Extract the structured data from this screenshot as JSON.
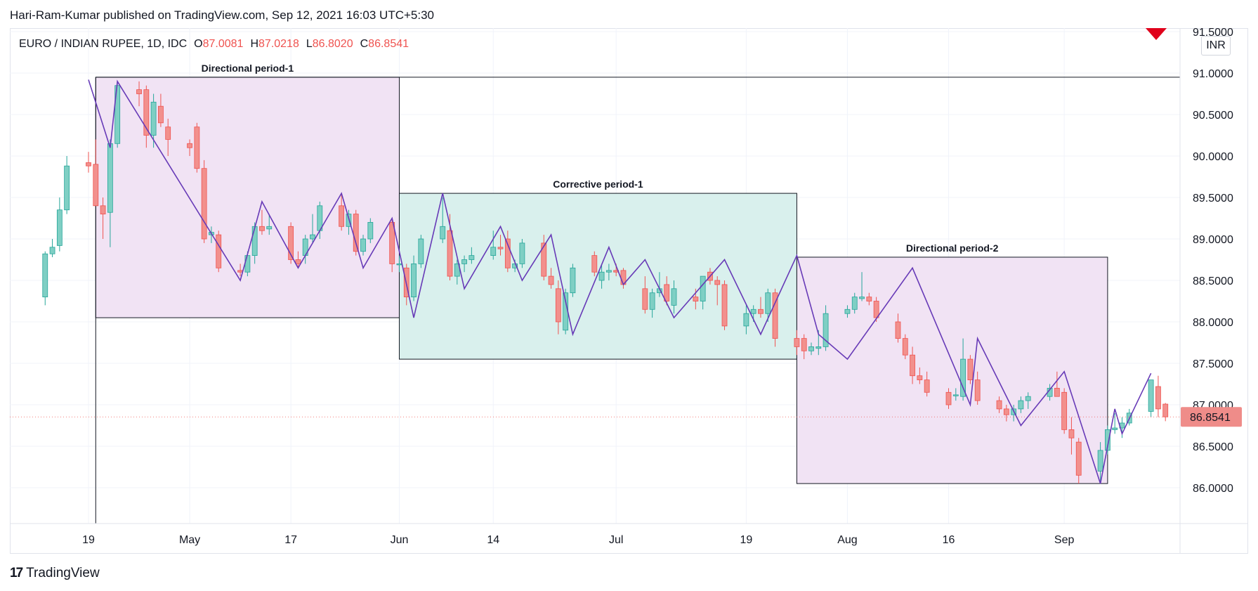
{
  "header": {
    "published_line": "Hari-Ram-Kumar published on TradingView.com, Sep 12, 2021 16:03 UTC+5:30"
  },
  "legend": {
    "symbol": "EURO / INDIAN RUPEE, 1D, IDC",
    "open_key": "O",
    "open_val": "87.0081",
    "high_key": "H",
    "high_val": "87.0218",
    "low_key": "L",
    "low_val": "86.8020",
    "close_key": "C",
    "close_val": "86.8541"
  },
  "currency_badge": "INR",
  "brand": {
    "logo": "17",
    "name": "TradingView"
  },
  "colors": {
    "up": "#26a69a",
    "up_fill": "#7fcfc4",
    "down": "#ef5350",
    "down_fill": "#f2908d",
    "zigzag": "#673ab7",
    "directional_fill": "#f1e3f4",
    "corrective_fill": "#d9f0ed",
    "price_tag": "#ef8c89",
    "alert": "#e0001b"
  },
  "chart_data": {
    "type": "candlestick",
    "title": "EURO / INDIAN RUPEE, 1D, IDC",
    "ylabel": "INR",
    "ylim": [
      85.6,
      91.5
    ],
    "y_ticks": [
      "86.0000",
      "86.5000",
      "87.0000",
      "87.5000",
      "88.0000",
      "88.5000",
      "89.0000",
      "89.5000",
      "90.0000",
      "90.5000",
      "91.0000",
      "91.5000"
    ],
    "x_ticks": [
      {
        "date": "2021-04-19",
        "label": "19"
      },
      {
        "date": "2021-05-03",
        "label": "May"
      },
      {
        "date": "2021-05-17",
        "label": "17"
      },
      {
        "date": "2021-06-01",
        "label": "Jun"
      },
      {
        "date": "2021-06-14",
        "label": "14"
      },
      {
        "date": "2021-07-01",
        "label": "Jul"
      },
      {
        "date": "2021-07-19",
        "label": "19"
      },
      {
        "date": "2021-08-02",
        "label": "Aug"
      },
      {
        "date": "2021-08-16",
        "label": "16"
      },
      {
        "date": "2021-09-01",
        "label": "Sep"
      }
    ],
    "last_price": "86.8541",
    "candles": [
      {
        "d": "2021-04-13",
        "o": 88.3,
        "h": 88.85,
        "l": 88.2,
        "c": 88.82
      },
      {
        "d": "2021-04-14",
        "o": 88.82,
        "h": 89.0,
        "l": 88.78,
        "c": 88.9
      },
      {
        "d": "2021-04-15",
        "o": 88.92,
        "h": 89.5,
        "l": 88.85,
        "c": 89.35
      },
      {
        "d": "2021-04-16",
        "o": 89.35,
        "h": 90.0,
        "l": 89.3,
        "c": 89.88
      },
      {
        "d": "2021-04-19",
        "o": 89.92,
        "h": 90.05,
        "l": 89.8,
        "c": 89.88
      },
      {
        "d": "2021-04-20",
        "o": 89.9,
        "h": 90.2,
        "l": 89.4,
        "c": 89.4
      },
      {
        "d": "2021-04-21",
        "o": 89.4,
        "h": 89.5,
        "l": 89.0,
        "c": 89.3
      },
      {
        "d": "2021-04-22",
        "o": 89.32,
        "h": 90.2,
        "l": 88.9,
        "c": 90.15
      },
      {
        "d": "2021-04-23",
        "o": 90.15,
        "h": 90.9,
        "l": 90.1,
        "c": 90.85
      },
      {
        "d": "2021-04-26",
        "o": 90.8,
        "h": 90.9,
        "l": 90.6,
        "c": 90.75
      },
      {
        "d": "2021-04-27",
        "o": 90.8,
        "h": 90.85,
        "l": 90.1,
        "c": 90.25
      },
      {
        "d": "2021-04-28",
        "o": 90.25,
        "h": 90.75,
        "l": 90.1,
        "c": 90.65
      },
      {
        "d": "2021-04-29",
        "o": 90.6,
        "h": 90.75,
        "l": 90.35,
        "c": 90.4
      },
      {
        "d": "2021-04-30",
        "o": 90.35,
        "h": 90.45,
        "l": 90.0,
        "c": 90.2
      },
      {
        "d": "2021-05-03",
        "o": 90.15,
        "h": 90.2,
        "l": 90.0,
        "c": 90.1
      },
      {
        "d": "2021-05-04",
        "o": 90.35,
        "h": 90.4,
        "l": 89.8,
        "c": 89.85
      },
      {
        "d": "2021-05-05",
        "o": 89.85,
        "h": 89.95,
        "l": 88.95,
        "c": 89.0
      },
      {
        "d": "2021-05-06",
        "o": 89.05,
        "h": 89.15,
        "l": 88.95,
        "c": 89.08
      },
      {
        "d": "2021-05-07",
        "o": 89.05,
        "h": 89.1,
        "l": 88.6,
        "c": 88.65
      },
      {
        "d": "2021-05-10",
        "o": 88.62,
        "h": 88.7,
        "l": 88.55,
        "c": 88.6
      },
      {
        "d": "2021-05-11",
        "o": 88.6,
        "h": 88.85,
        "l": 88.55,
        "c": 88.8
      },
      {
        "d": "2021-05-12",
        "o": 88.8,
        "h": 89.2,
        "l": 88.7,
        "c": 89.15
      },
      {
        "d": "2021-05-13",
        "o": 89.15,
        "h": 89.35,
        "l": 89.05,
        "c": 89.1
      },
      {
        "d": "2021-05-14",
        "o": 89.12,
        "h": 89.3,
        "l": 89.05,
        "c": 89.15
      },
      {
        "d": "2021-05-17",
        "o": 89.15,
        "h": 89.2,
        "l": 88.7,
        "c": 88.75
      },
      {
        "d": "2021-05-18",
        "o": 88.75,
        "h": 88.85,
        "l": 88.65,
        "c": 88.7
      },
      {
        "d": "2021-05-19",
        "o": 88.8,
        "h": 89.05,
        "l": 88.7,
        "c": 89.0
      },
      {
        "d": "2021-05-20",
        "o": 89.0,
        "h": 89.3,
        "l": 88.95,
        "c": 89.05
      },
      {
        "d": "2021-05-21",
        "o": 89.1,
        "h": 89.45,
        "l": 89.0,
        "c": 89.4
      },
      {
        "d": "2021-05-24",
        "o": 89.4,
        "h": 89.55,
        "l": 89.1,
        "c": 89.15
      },
      {
        "d": "2021-05-25",
        "o": 89.15,
        "h": 89.35,
        "l": 89.05,
        "c": 89.3
      },
      {
        "d": "2021-05-26",
        "o": 89.3,
        "h": 89.35,
        "l": 88.8,
        "c": 88.85
      },
      {
        "d": "2021-05-27",
        "o": 88.85,
        "h": 89.05,
        "l": 88.8,
        "c": 89.0
      },
      {
        "d": "2021-05-28",
        "o": 89.0,
        "h": 89.25,
        "l": 88.95,
        "c": 89.2
      },
      {
        "d": "2021-05-31",
        "o": 89.2,
        "h": 89.25,
        "l": 88.6,
        "c": 88.7
      },
      {
        "d": "2021-06-01",
        "o": 88.7,
        "h": 88.8,
        "l": 88.6,
        "c": 88.7
      },
      {
        "d": "2021-06-02",
        "o": 88.65,
        "h": 88.7,
        "l": 88.2,
        "c": 88.3
      },
      {
        "d": "2021-06-03",
        "o": 88.3,
        "h": 88.8,
        "l": 88.25,
        "c": 88.7
      },
      {
        "d": "2021-06-04",
        "o": 88.7,
        "h": 89.05,
        "l": 88.65,
        "c": 89.0
      },
      {
        "d": "2021-06-07",
        "o": 89.0,
        "h": 89.5,
        "l": 88.95,
        "c": 89.15
      },
      {
        "d": "2021-06-08",
        "o": 89.1,
        "h": 89.3,
        "l": 88.5,
        "c": 88.55
      },
      {
        "d": "2021-06-09",
        "o": 88.55,
        "h": 88.75,
        "l": 88.45,
        "c": 88.7
      },
      {
        "d": "2021-06-10",
        "o": 88.7,
        "h": 88.8,
        "l": 88.6,
        "c": 88.75
      },
      {
        "d": "2021-06-11",
        "o": 88.75,
        "h": 88.9,
        "l": 88.7,
        "c": 88.8
      },
      {
        "d": "2021-06-14",
        "o": 88.8,
        "h": 89.1,
        "l": 88.75,
        "c": 88.9
      },
      {
        "d": "2021-06-15",
        "o": 88.9,
        "h": 89.05,
        "l": 88.8,
        "c": 88.88
      },
      {
        "d": "2021-06-16",
        "o": 89.0,
        "h": 89.1,
        "l": 88.6,
        "c": 88.65
      },
      {
        "d": "2021-06-17",
        "o": 88.65,
        "h": 88.75,
        "l": 88.6,
        "c": 88.7
      },
      {
        "d": "2021-06-18",
        "o": 88.7,
        "h": 89.0,
        "l": 88.65,
        "c": 88.95
      },
      {
        "d": "2021-06-21",
        "o": 88.95,
        "h": 89.05,
        "l": 88.5,
        "c": 88.55
      },
      {
        "d": "2021-06-22",
        "o": 88.55,
        "h": 88.65,
        "l": 88.4,
        "c": 88.45
      },
      {
        "d": "2021-06-23",
        "o": 88.4,
        "h": 88.5,
        "l": 87.85,
        "c": 88.0
      },
      {
        "d": "2021-06-24",
        "o": 87.9,
        "h": 88.4,
        "l": 87.85,
        "c": 88.35
      },
      {
        "d": "2021-06-25",
        "o": 88.35,
        "h": 88.7,
        "l": 88.3,
        "c": 88.65
      },
      {
        "d": "2021-06-28",
        "o": 88.8,
        "h": 88.85,
        "l": 88.55,
        "c": 88.6
      },
      {
        "d": "2021-06-29",
        "o": 88.5,
        "h": 88.7,
        "l": 88.4,
        "c": 88.6
      },
      {
        "d": "2021-06-30",
        "o": 88.6,
        "h": 88.7,
        "l": 88.5,
        "c": 88.62
      },
      {
        "d": "2021-07-01",
        "o": 88.62,
        "h": 88.7,
        "l": 88.55,
        "c": 88.6
      },
      {
        "d": "2021-07-02",
        "o": 88.62,
        "h": 88.65,
        "l": 88.4,
        "c": 88.45
      },
      {
        "d": "2021-07-05",
        "o": 88.4,
        "h": 88.55,
        "l": 88.1,
        "c": 88.15
      },
      {
        "d": "2021-07-06",
        "o": 88.15,
        "h": 88.4,
        "l": 88.05,
        "c": 88.35
      },
      {
        "d": "2021-07-07",
        "o": 88.35,
        "h": 88.6,
        "l": 88.3,
        "c": 88.4
      },
      {
        "d": "2021-07-08",
        "o": 88.45,
        "h": 88.55,
        "l": 88.2,
        "c": 88.25
      },
      {
        "d": "2021-07-09",
        "o": 88.2,
        "h": 88.5,
        "l": 88.1,
        "c": 88.4
      },
      {
        "d": "2021-07-12",
        "o": 88.3,
        "h": 88.4,
        "l": 88.15,
        "c": 88.25
      },
      {
        "d": "2021-07-13",
        "o": 88.25,
        "h": 88.55,
        "l": 88.15,
        "c": 88.55
      },
      {
        "d": "2021-07-14",
        "o": 88.6,
        "h": 88.65,
        "l": 88.45,
        "c": 88.5
      },
      {
        "d": "2021-07-15",
        "o": 88.5,
        "h": 88.55,
        "l": 88.2,
        "c": 88.45
      },
      {
        "d": "2021-07-16",
        "o": 88.45,
        "h": 88.5,
        "l": 87.9,
        "c": 87.95
      },
      {
        "d": "2021-07-19",
        "o": 87.95,
        "h": 88.2,
        "l": 87.85,
        "c": 88.1
      },
      {
        "d": "2021-07-20",
        "o": 88.1,
        "h": 88.2,
        "l": 88.0,
        "c": 88.15
      },
      {
        "d": "2021-07-21",
        "o": 88.15,
        "h": 88.3,
        "l": 88.05,
        "c": 88.1
      },
      {
        "d": "2021-07-22",
        "o": 88.1,
        "h": 88.4,
        "l": 88.0,
        "c": 88.35
      },
      {
        "d": "2021-07-23",
        "o": 88.35,
        "h": 88.4,
        "l": 87.7,
        "c": 87.8
      },
      {
        "d": "2021-07-26",
        "o": 87.8,
        "h": 87.9,
        "l": 87.6,
        "c": 87.7
      },
      {
        "d": "2021-07-27",
        "o": 87.8,
        "h": 87.85,
        "l": 87.55,
        "c": 87.65
      },
      {
        "d": "2021-07-28",
        "o": 87.65,
        "h": 87.75,
        "l": 87.6,
        "c": 87.7
      },
      {
        "d": "2021-07-29",
        "o": 87.68,
        "h": 87.9,
        "l": 87.6,
        "c": 87.7
      },
      {
        "d": "2021-07-30",
        "o": 87.7,
        "h": 88.2,
        "l": 87.65,
        "c": 88.1
      },
      {
        "d": "2021-08-02",
        "o": 88.1,
        "h": 88.2,
        "l": 88.05,
        "c": 88.15
      },
      {
        "d": "2021-08-03",
        "o": 88.15,
        "h": 88.35,
        "l": 88.1,
        "c": 88.3
      },
      {
        "d": "2021-08-04",
        "o": 88.28,
        "h": 88.6,
        "l": 88.25,
        "c": 88.3
      },
      {
        "d": "2021-08-05",
        "o": 88.3,
        "h": 88.35,
        "l": 88.2,
        "c": 88.25
      },
      {
        "d": "2021-08-06",
        "o": 88.25,
        "h": 88.3,
        "l": 88.0,
        "c": 88.05
      },
      {
        "d": "2021-08-09",
        "o": 88.0,
        "h": 88.1,
        "l": 87.75,
        "c": 87.8
      },
      {
        "d": "2021-08-10",
        "o": 87.8,
        "h": 87.85,
        "l": 87.55,
        "c": 87.6
      },
      {
        "d": "2021-08-11",
        "o": 87.6,
        "h": 87.7,
        "l": 87.25,
        "c": 87.35
      },
      {
        "d": "2021-08-12",
        "o": 87.35,
        "h": 87.45,
        "l": 87.25,
        "c": 87.3
      },
      {
        "d": "2021-08-13",
        "o": 87.3,
        "h": 87.4,
        "l": 87.1,
        "c": 87.15
      },
      {
        "d": "2021-08-16",
        "o": 87.15,
        "h": 87.2,
        "l": 86.95,
        "c": 87.0
      },
      {
        "d": "2021-08-17",
        "o": 87.12,
        "h": 87.2,
        "l": 87.05,
        "c": 87.12
      },
      {
        "d": "2021-08-18",
        "o": 87.1,
        "h": 87.8,
        "l": 87.05,
        "c": 87.55
      },
      {
        "d": "2021-08-19",
        "o": 87.55,
        "h": 87.6,
        "l": 87.25,
        "c": 87.3
      },
      {
        "d": "2021-08-20",
        "o": 87.3,
        "h": 87.4,
        "l": 87.0,
        "c": 87.05
      },
      {
        "d": "2021-08-23",
        "o": 87.05,
        "h": 87.1,
        "l": 86.9,
        "c": 86.95
      },
      {
        "d": "2021-08-24",
        "o": 86.95,
        "h": 87.0,
        "l": 86.8,
        "c": 86.88
      },
      {
        "d": "2021-08-25",
        "o": 86.88,
        "h": 87.0,
        "l": 86.8,
        "c": 86.95
      },
      {
        "d": "2021-08-26",
        "o": 86.95,
        "h": 87.1,
        "l": 86.9,
        "c": 87.05
      },
      {
        "d": "2021-08-27",
        "o": 87.05,
        "h": 87.15,
        "l": 86.95,
        "c": 87.1
      },
      {
        "d": "2021-08-30",
        "o": 87.1,
        "h": 87.25,
        "l": 87.05,
        "c": 87.2
      },
      {
        "d": "2021-08-31",
        "o": 87.2,
        "h": 87.4,
        "l": 87.1,
        "c": 87.1
      },
      {
        "d": "2021-09-01",
        "o": 87.15,
        "h": 87.2,
        "l": 86.65,
        "c": 86.7
      },
      {
        "d": "2021-09-02",
        "o": 86.7,
        "h": 86.85,
        "l": 86.4,
        "c": 86.6
      },
      {
        "d": "2021-09-03",
        "o": 86.55,
        "h": 86.6,
        "l": 86.05,
        "c": 86.15
      },
      {
        "d": "2021-09-06",
        "o": 86.2,
        "h": 86.55,
        "l": 86.05,
        "c": 86.45
      },
      {
        "d": "2021-09-07",
        "o": 86.45,
        "h": 86.75,
        "l": 86.4,
        "c": 86.7
      },
      {
        "d": "2021-09-08",
        "o": 86.7,
        "h": 86.9,
        "l": 86.65,
        "c": 86.72
      },
      {
        "d": "2021-09-09",
        "o": 86.72,
        "h": 86.85,
        "l": 86.6,
        "c": 86.78
      },
      {
        "d": "2021-09-10",
        "o": 86.78,
        "h": 86.95,
        "l": 86.75,
        "c": 86.9
      },
      {
        "d": "2021-09-13",
        "o": 86.92,
        "h": 87.3,
        "l": 86.85,
        "c": 87.3
      },
      {
        "d": "2021-09-14",
        "o": 87.22,
        "h": 87.35,
        "l": 86.85,
        "c": 86.95
      },
      {
        "d": "2021-09-15",
        "o": 87.0081,
        "h": 87.0218,
        "l": 86.802,
        "c": 86.8541
      }
    ],
    "zigzag": [
      {
        "d": "2021-04-19",
        "v": 90.92
      },
      {
        "d": "2021-04-22",
        "v": 90.1
      },
      {
        "d": "2021-04-23",
        "v": 90.9
      },
      {
        "d": "2021-05-10",
        "v": 88.5
      },
      {
        "d": "2021-05-13",
        "v": 89.45
      },
      {
        "d": "2021-05-18",
        "v": 88.65
      },
      {
        "d": "2021-05-24",
        "v": 89.55
      },
      {
        "d": "2021-05-27",
        "v": 88.65
      },
      {
        "d": "2021-05-31",
        "v": 89.25
      },
      {
        "d": "2021-06-03",
        "v": 88.05
      },
      {
        "d": "2021-06-07",
        "v": 89.55
      },
      {
        "d": "2021-06-10",
        "v": 88.4
      },
      {
        "d": "2021-06-15",
        "v": 89.15
      },
      {
        "d": "2021-06-18",
        "v": 88.5
      },
      {
        "d": "2021-06-22",
        "v": 89.05
      },
      {
        "d": "2021-06-25",
        "v": 87.85
      },
      {
        "d": "2021-06-30",
        "v": 88.9
      },
      {
        "d": "2021-07-02",
        "v": 88.45
      },
      {
        "d": "2021-07-05",
        "v": 88.75
      },
      {
        "d": "2021-07-09",
        "v": 88.05
      },
      {
        "d": "2021-07-16",
        "v": 88.75
      },
      {
        "d": "2021-07-21",
        "v": 87.85
      },
      {
        "d": "2021-07-26",
        "v": 88.8
      },
      {
        "d": "2021-07-29",
        "v": 87.85
      },
      {
        "d": "2021-08-02",
        "v": 87.55
      },
      {
        "d": "2021-08-11",
        "v": 88.65
      },
      {
        "d": "2021-08-19",
        "v": 87.0
      },
      {
        "d": "2021-08-20",
        "v": 87.8
      },
      {
        "d": "2021-08-26",
        "v": 86.75
      },
      {
        "d": "2021-09-01",
        "v": 87.4
      },
      {
        "d": "2021-09-06",
        "v": 86.05
      },
      {
        "d": "2021-09-08",
        "v": 86.95
      },
      {
        "d": "2021-09-09",
        "v": 86.65
      },
      {
        "d": "2021-09-13",
        "v": 87.38
      }
    ],
    "annotations": [
      {
        "label": "Directional period-1",
        "kind": "directional",
        "d1": "2021-04-20",
        "d2": "2021-06-01",
        "top": 90.95,
        "bottom": 88.05
      },
      {
        "label": "Corrective period-1",
        "kind": "corrective",
        "d1": "2021-06-01",
        "d2": "2021-07-26",
        "top": 89.55,
        "bottom": 87.55
      },
      {
        "label": "Directional period-2",
        "kind": "directional",
        "d1": "2021-07-26",
        "d2": "2021-09-07",
        "top": 88.78,
        "bottom": 86.05
      }
    ],
    "horizontal_lines": [
      90.95
    ],
    "vertical_lines": [
      "2021-04-20"
    ],
    "grid": true,
    "legend_position": "top-left"
  }
}
